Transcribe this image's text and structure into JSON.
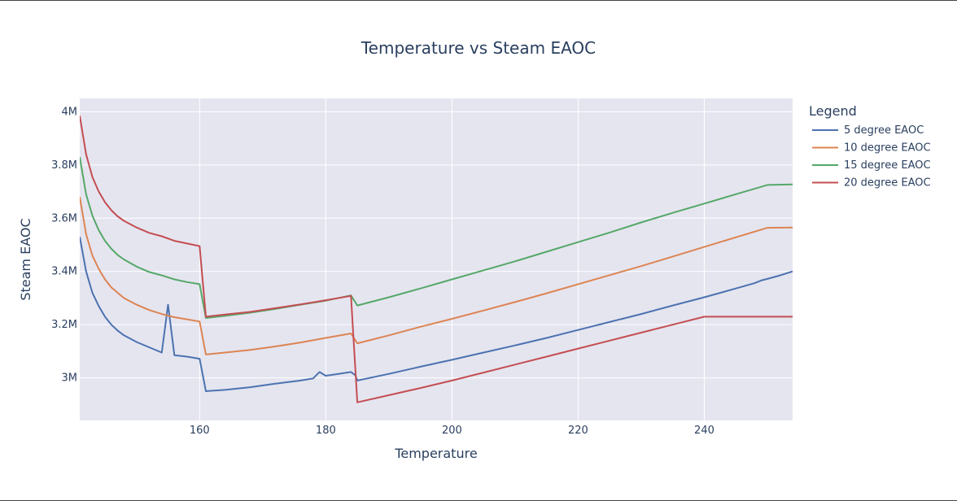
{
  "chart_data": {
    "type": "line",
    "title": "Temperature vs Steam EAOC",
    "xlabel": "Temperature",
    "ylabel": "Steam EAOC",
    "xlim": [
      141,
      254
    ],
    "ylim": [
      2840000,
      4050000
    ],
    "x_ticks": [
      160,
      180,
      200,
      220,
      240
    ],
    "x_tick_labels": [
      "160",
      "180",
      "200",
      "220",
      "240"
    ],
    "y_ticks": [
      3000000,
      3200000,
      3400000,
      3600000,
      3800000,
      4000000
    ],
    "y_tick_labels": [
      "3M",
      "3.2M",
      "3.4M",
      "3.6M",
      "3.8M",
      "4M"
    ],
    "grid": true,
    "legend": {
      "title": "Legend",
      "placement": "right"
    },
    "series": [
      {
        "name": "5 degree EAOC",
        "color": "#4c72b0",
        "x": [
          141,
          142,
          143,
          144,
          145,
          146,
          147,
          148,
          150,
          152,
          154,
          155,
          156,
          158,
          160,
          161,
          164,
          168,
          172,
          176,
          178,
          179,
          180,
          182,
          184,
          184.7,
          185,
          190,
          195,
          200,
          205,
          210,
          215,
          220,
          225,
          230,
          235,
          240,
          245,
          248,
          249,
          250,
          252,
          254
        ],
        "y": [
          3530000,
          3400000,
          3320000,
          3270000,
          3230000,
          3200000,
          3178000,
          3160000,
          3135000,
          3115000,
          3095000,
          3275000,
          3085000,
          3080000,
          3072000,
          2950000,
          2955000,
          2965000,
          2978000,
          2990000,
          2998000,
          3022000,
          3008000,
          3015000,
          3022000,
          3010000,
          2990000,
          3015000,
          3042000,
          3068000,
          3095000,
          3122000,
          3150000,
          3180000,
          3210000,
          3240000,
          3272000,
          3303000,
          3336000,
          3356000,
          3366000,
          3372000,
          3385000,
          3400000
        ]
      },
      {
        "name": "10 degree EAOC",
        "color": "#dd8452",
        "x": [
          141,
          142,
          143,
          144,
          145,
          146,
          147,
          148,
          150,
          152,
          154,
          156,
          158,
          160,
          161,
          164,
          168,
          172,
          176,
          180,
          184,
          185,
          190,
          195,
          200,
          205,
          210,
          215,
          220,
          225,
          230,
          235,
          240,
          245,
          250,
          254
        ],
        "y": [
          3680000,
          3540000,
          3460000,
          3410000,
          3370000,
          3340000,
          3320000,
          3300000,
          3275000,
          3255000,
          3240000,
          3228000,
          3220000,
          3212000,
          3088000,
          3095000,
          3105000,
          3118000,
          3133000,
          3150000,
          3167000,
          3130000,
          3160000,
          3192000,
          3222000,
          3253000,
          3285000,
          3318000,
          3352000,
          3386000,
          3420000,
          3456000,
          3492000,
          3528000,
          3564000,
          3565000
        ]
      },
      {
        "name": "15 degree EAOC",
        "color": "#55a868",
        "x": [
          141,
          142,
          143,
          144,
          145,
          146,
          147,
          148,
          150,
          152,
          154,
          156,
          158,
          160,
          161,
          164,
          168,
          172,
          176,
          180,
          184,
          185,
          190,
          195,
          200,
          205,
          210,
          215,
          220,
          225,
          230,
          235,
          240,
          245,
          250,
          254
        ],
        "y": [
          3830000,
          3690000,
          3610000,
          3555000,
          3515000,
          3485000,
          3462000,
          3445000,
          3418000,
          3398000,
          3385000,
          3370000,
          3360000,
          3352000,
          3225000,
          3233000,
          3245000,
          3259000,
          3275000,
          3290000,
          3310000,
          3272000,
          3303000,
          3336000,
          3370000,
          3404000,
          3438000,
          3474000,
          3510000,
          3546000,
          3584000,
          3620000,
          3655000,
          3690000,
          3725000,
          3727000
        ]
      },
      {
        "name": "20 degree EAOC",
        "color": "#c44e52",
        "x": [
          141,
          142,
          143,
          144,
          145,
          146,
          147,
          148,
          150,
          152,
          154,
          156,
          158,
          160,
          161,
          164,
          168,
          172,
          176,
          180,
          184,
          185,
          190,
          195,
          200,
          205,
          210,
          215,
          220,
          225,
          230,
          235,
          240,
          245,
          250,
          254
        ],
        "y": [
          3985000,
          3840000,
          3755000,
          3700000,
          3660000,
          3630000,
          3607000,
          3590000,
          3565000,
          3545000,
          3532000,
          3515000,
          3505000,
          3495000,
          3230000,
          3238000,
          3248000,
          3262000,
          3276000,
          3292000,
          3308000,
          2908000,
          2935000,
          2962000,
          2990000,
          3020000,
          3050000,
          3080000,
          3110000,
          3140000,
          3170000,
          3200000,
          3230000,
          3230000,
          3230000,
          3230000
        ]
      }
    ]
  }
}
